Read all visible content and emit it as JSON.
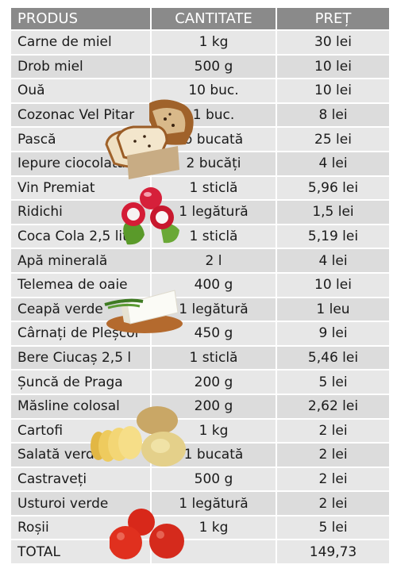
{
  "header": {
    "product": "PRODUS",
    "quantity": "CANTITATE",
    "price": "PREȚ"
  },
  "rows": [
    {
      "product": "Carne de miel",
      "quantity": "1 kg",
      "price": "30 lei"
    },
    {
      "product": "Drob miel",
      "quantity": "500 g",
      "price": "10 lei"
    },
    {
      "product": "Ouă",
      "quantity": "10 buc.",
      "price": "10 lei"
    },
    {
      "product": "Cozonac Vel Pitar",
      "quantity": "1 buc.",
      "price": "8 lei"
    },
    {
      "product": "Pască",
      "quantity": "o bucată",
      "price": "25 lei"
    },
    {
      "product": "Iepure ciocolată",
      "quantity": "2 bucăți",
      "price": "4 lei"
    },
    {
      "product": "Vin Premiat",
      "quantity": "1 sticlă",
      "price": "5,96 lei"
    },
    {
      "product": "Ridichi",
      "quantity": "1 legătură",
      "price": "1,5 lei"
    },
    {
      "product": "Coca Cola 2,5 litri",
      "quantity": "1 sticlă",
      "price": "5,19 lei"
    },
    {
      "product": "Apă minerală",
      "quantity": "2 l",
      "price": "4 lei"
    },
    {
      "product": "Telemea de oaie",
      "quantity": "400 g",
      "price": "10 lei"
    },
    {
      "product": "Ceapă verde",
      "quantity": "1 legătură",
      "price": "1 leu"
    },
    {
      "product": "Cârnați de Pleșcoi",
      "quantity": "450 g",
      "price": "9 lei"
    },
    {
      "product": "Bere Ciucaș 2,5 l",
      "quantity": "1 sticlă",
      "price": "5,46 lei"
    },
    {
      "product": "Șuncă de Praga",
      "quantity": "200 g",
      "price": "5 lei"
    },
    {
      "product": "Măsline colosal",
      "quantity": "200 g",
      "price": "2,62 lei"
    },
    {
      "product": "Cartofi",
      "quantity": "1 kg",
      "price": "2 lei"
    },
    {
      "product": "Salată verde",
      "quantity": "1 bucată",
      "price": "2 lei"
    },
    {
      "product": "Castraveți",
      "quantity": "500 g",
      "price": "2 lei"
    },
    {
      "product": "Usturoi verde",
      "quantity": "1 legătură",
      "price": "2 lei"
    },
    {
      "product": "Roșii",
      "quantity": "1 kg",
      "price": "5 lei"
    }
  ],
  "total": {
    "label": "TOTAL",
    "value": "149,73"
  },
  "images": [
    "bread-image",
    "radish-image",
    "cheese-image",
    "potato-image",
    "tomato-image"
  ]
}
